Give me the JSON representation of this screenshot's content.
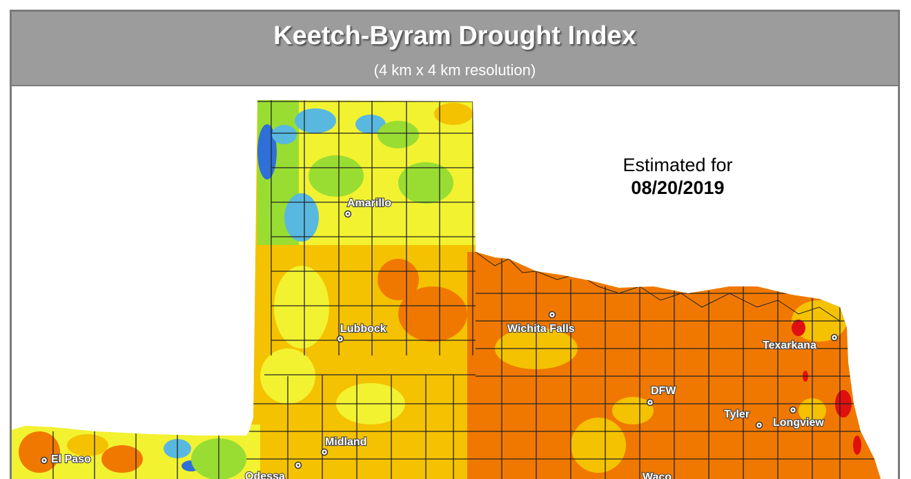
{
  "header": {
    "title": "Keetch-Byram Drought Index",
    "subtitle": "(4 km x 4 km resolution)"
  },
  "estimate": {
    "label": "Estimated for",
    "date": "08/20/2019"
  },
  "cities": [
    {
      "name": "Amarillo"
    },
    {
      "name": "Lubbock"
    },
    {
      "name": "Wichita Falls"
    },
    {
      "name": "Texarkana"
    },
    {
      "name": "DFW"
    },
    {
      "name": "Tyler"
    },
    {
      "name": "Longview"
    },
    {
      "name": "Midland"
    },
    {
      "name": "Odessa"
    },
    {
      "name": "El Paso"
    },
    {
      "name": "Waco"
    }
  ],
  "colors": {
    "very_low": "#2f6fd8",
    "low": "#58b8e0",
    "mid_low": "#99dd33",
    "mid": "#f2f230",
    "mid_high": "#f4c200",
    "high": "#f07800",
    "extreme": "#e01010",
    "county_line": "#222222",
    "header_bg": "#9c9c9c"
  }
}
